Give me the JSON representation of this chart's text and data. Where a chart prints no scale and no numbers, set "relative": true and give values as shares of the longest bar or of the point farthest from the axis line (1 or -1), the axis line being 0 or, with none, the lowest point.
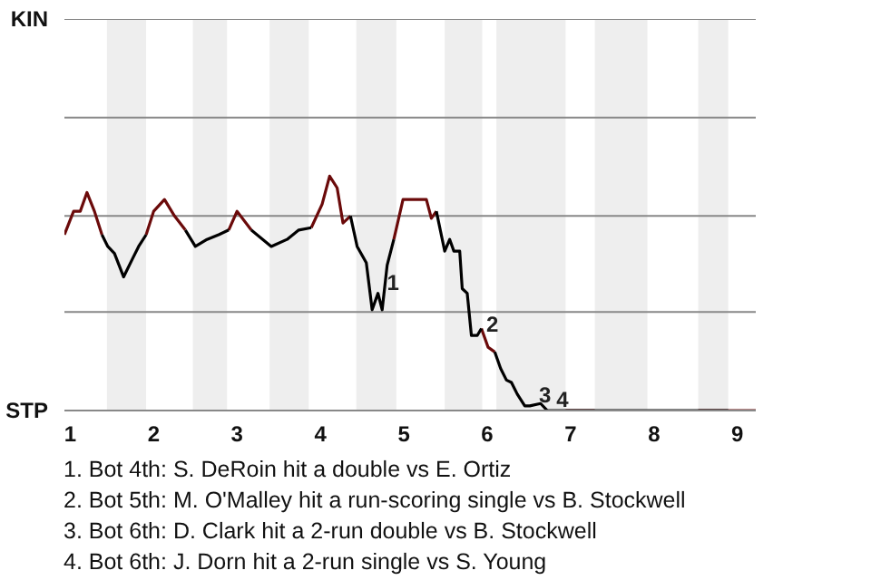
{
  "chart_data": {
    "type": "line",
    "relative": true,
    "x": [
      0.93,
      1.04,
      1.12,
      1.2,
      1.29,
      1.38,
      1.45,
      1.53,
      1.64,
      1.75,
      1.82,
      1.91,
      2,
      2.13,
      2.25,
      2.38,
      2.5,
      2.64,
      2.78,
      2.9,
      3,
      3.17,
      3.41,
      3.6,
      3.74,
      3.89,
      4.02,
      4.11,
      4.2,
      4.27,
      4.36,
      4.44,
      4.55,
      4.62,
      4.69,
      4.74,
      4.8,
      4.88,
      4.99,
      5.27,
      5.33,
      5.39,
      5.49,
      5.55,
      5.6,
      5.67,
      5.7,
      5.76,
      5.81,
      5.88,
      5.93,
      6.01,
      6.09,
      6.16,
      6.23,
      6.29,
      6.36,
      6.45,
      6.51,
      6.64,
      6.72,
      6.94,
      7.29,
      7.92,
      8.53,
      8.89,
      9.22
    ],
    "series": [
      {
        "color": "#6b0a0a",
        "values": [
          0.75,
          0.85,
          0.85,
          0.93,
          0.85,
          0.75,
          null,
          null,
          null,
          null,
          null,
          0.75,
          0.85,
          0.9,
          0.83,
          0.77,
          null,
          null,
          null,
          0.77,
          0.85,
          0.77,
          null,
          null,
          null,
          0.78,
          0.88,
          1,
          0.95,
          0.8,
          0.83,
          null,
          null,
          null,
          null,
          null,
          null,
          0.73,
          0.9,
          0.9,
          0.82,
          0.85,
          null,
          null,
          null,
          null,
          null,
          null,
          null,
          null,
          0.35,
          0.27,
          0.25,
          null,
          null,
          null,
          null,
          null,
          null,
          null,
          null,
          0,
          0,
          null,
          0,
          0,
          0
        ]
      },
      {
        "color": "#000000",
        "values": [
          null,
          null,
          null,
          null,
          null,
          0.75,
          0.7,
          0.67,
          0.57,
          0.65,
          0.7,
          0.75,
          null,
          null,
          null,
          0.77,
          0.7,
          0.73,
          0.75,
          0.77,
          null,
          0.77,
          0.7,
          0.73,
          0.77,
          0.78,
          null,
          null,
          null,
          null,
          0.83,
          0.7,
          0.63,
          0.43,
          0.5,
          0.43,
          0.62,
          0.73,
          null,
          null,
          null,
          0.85,
          0.68,
          0.73,
          0.68,
          0.68,
          0.52,
          0.5,
          0.32,
          0.32,
          0.35,
          null,
          0.25,
          0.18,
          0.13,
          0.12,
          0.07,
          0.02,
          0.02,
          0.03,
          0,
          0,
          0,
          0,
          0,
          0,
          null
        ]
      }
    ],
    "xlim": [
      0.93,
      9.22
    ],
    "xticks": [
      1,
      2,
      3,
      4,
      5,
      6,
      7,
      8,
      9
    ],
    "ref_lines": [
      {
        "axis": "y",
        "value": 0,
        "label": "STP",
        "color": "#888888"
      },
      {
        "axis": "y",
        "value": 0.42,
        "label": null,
        "color": "#888888"
      },
      {
        "axis": "y",
        "value": 0.83,
        "label": null,
        "color": "#888888"
      },
      {
        "axis": "y",
        "value": 1.25,
        "label": null,
        "color": "#888888"
      },
      {
        "axis": "y",
        "value": 1.67,
        "label": "KIN",
        "color": "#888888"
      }
    ],
    "bands": [
      {
        "axis": "x",
        "from": 1.44,
        "to": 1.91,
        "color": "#eeeeee"
      },
      {
        "axis": "x",
        "from": 2.47,
        "to": 2.88,
        "color": "#eeeeee"
      },
      {
        "axis": "x",
        "from": 3.39,
        "to": 3.86,
        "color": "#eeeeee"
      },
      {
        "axis": "x",
        "from": 4.43,
        "to": 4.91,
        "color": "#eeeeee"
      },
      {
        "axis": "x",
        "from": 5.49,
        "to": 5.94,
        "color": "#eeeeee"
      },
      {
        "axis": "x",
        "from": 6.11,
        "to": 6.94,
        "color": "#eeeeee"
      },
      {
        "axis": "x",
        "from": 7.29,
        "to": 7.92,
        "color": "#eeeeee"
      },
      {
        "axis": "x",
        "from": 8.53,
        "to": 8.89,
        "color": "#eeeeee"
      }
    ],
    "annotations": [
      {
        "text": "1",
        "x": 4.69,
        "y": 0.5
      },
      {
        "text": "2",
        "x": 5.88,
        "y": 0.32
      },
      {
        "text": "3",
        "x": 6.51,
        "y": 0.02
      },
      {
        "text": "4",
        "x": 6.72,
        "y": 0
      },
      "1. Bot 4th: S. DeRoin hit a double vs E. Ortiz",
      "2. Bot 5th: M. O'Malley hit a run-scoring single vs B. Stockwell",
      "3. Bot 6th: D. Clark hit a 2-run double vs B. Stockwell",
      "4. Bot 6th: J. Dorn hit a 2-run single vs S. Young"
    ]
  }
}
